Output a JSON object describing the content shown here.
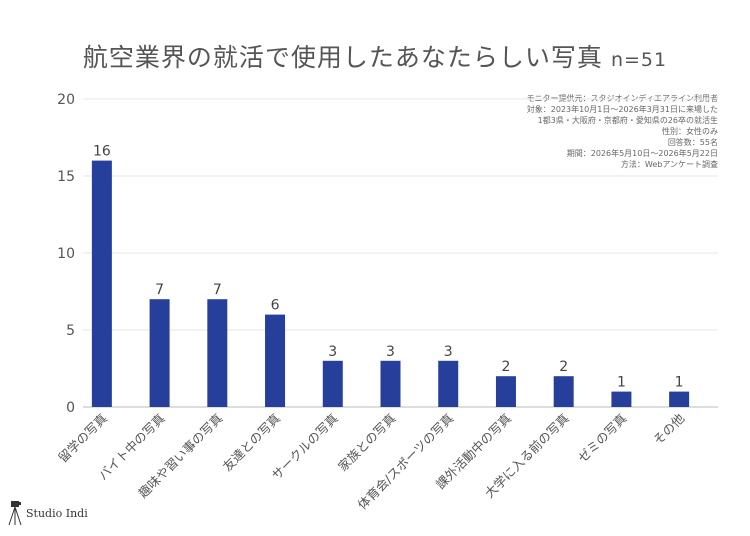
{
  "chart_data": {
    "type": "bar",
    "title": "航空業界の就活で使用したあなたらしい写真",
    "n_label": "n=51",
    "categories": [
      "留学の写真",
      "バイト中の写真",
      "趣味や習い事の写真",
      "友達との写真",
      "サークルの写真",
      "家族との写真",
      "体育会/スポーツの写真",
      "課外活動中の写真",
      "大学に入る前の写真",
      "ゼミの写真",
      "その他"
    ],
    "values": [
      16,
      7,
      7,
      6,
      3,
      3,
      3,
      2,
      2,
      1,
      1
    ],
    "y_ticks": [
      "0",
      "5",
      "10",
      "15",
      "20"
    ],
    "ylim": [
      0,
      20
    ],
    "xlabel": "",
    "ylabel": "",
    "grid": true,
    "bar_color": "#253f9a"
  },
  "notes": [
    "モニター提供元：スタジオインディエアライン利用者",
    "対象：2023年10月1日〜2026年3月31日に来場した",
    "1都3県・大阪府・京都府・愛知県の26卒の就活生",
    "性別：女性のみ",
    "回答数：55名",
    "期間：2026年5月10日〜2026年5月22日",
    "方法：Webアンケート調査"
  ],
  "logo": {
    "text": "Studio Indi",
    "icon": "camera-tripod-icon"
  }
}
